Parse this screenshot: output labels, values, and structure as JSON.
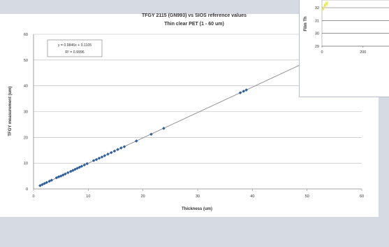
{
  "chart_data": [
    {
      "type": "scatter",
      "title": "TFGY 2115 (GN993) vs SIOS reference values",
      "subtitle": "Thin clear PET (1 - 60 um)",
      "xlabel": "Thickness (um)",
      "ylabel": "TFGY measurement (um)",
      "xlim": [
        0,
        60
      ],
      "ylim": [
        0,
        60
      ],
      "x_ticks": [
        "0",
        "10",
        "20",
        "30",
        "40",
        "50",
        "60"
      ],
      "y_ticks": [
        "0",
        "10",
        "20",
        "30",
        "40",
        "50",
        "60"
      ],
      "grid": "horizontal",
      "trendline": {
        "slope": 0.9846,
        "intercept": 0.1105
      },
      "equation_label": "y = 0.9846x + 0.1105",
      "r2_label": "R² = 0.9996",
      "point_color": "#2e5f9e",
      "line_color": "#8a8a8a",
      "series": [
        {
          "x": [
            1.2,
            1.6,
            2.0,
            2.4,
            2.9,
            3.3,
            4.2,
            4.6,
            5.0,
            5.4,
            5.8,
            6.3,
            6.8,
            7.2,
            7.6,
            8.0,
            8.4,
            8.8,
            9.3,
            9.8,
            11.0,
            11.5,
            12.0,
            12.5,
            13.0,
            13.6,
            14.2,
            14.8,
            15.4,
            16.0,
            16.6,
            18.8,
            21.5,
            23.8,
            37.8,
            38.4,
            38.9
          ],
          "y": [
            1.3,
            1.7,
            2.1,
            2.5,
            3.0,
            3.4,
            4.3,
            4.7,
            5.0,
            5.4,
            5.8,
            6.3,
            6.8,
            7.2,
            7.6,
            8.0,
            8.4,
            8.8,
            9.3,
            9.8,
            11.0,
            11.4,
            11.9,
            12.4,
            12.9,
            13.5,
            14.1,
            14.7,
            15.3,
            15.9,
            16.4,
            18.6,
            21.2,
            23.5,
            37.3,
            37.9,
            38.4
          ]
        }
      ]
    },
    {
      "type": "line",
      "ylabel": "Film Th",
      "y_ticks": [
        "29",
        "30",
        "31",
        "32"
      ],
      "x_ticks": [
        "0",
        "200"
      ],
      "ylim": [
        29,
        32.6
      ],
      "xlim": [
        0,
        330
      ],
      "line_color": "#e8e84a",
      "series": [
        {
          "x": [
            0,
            4,
            8,
            12,
            16,
            20,
            24,
            28
          ],
          "y": [
            31.7,
            32.0,
            31.8,
            32.3,
            32.1,
            32.4,
            32.2,
            32.5
          ]
        }
      ]
    }
  ]
}
